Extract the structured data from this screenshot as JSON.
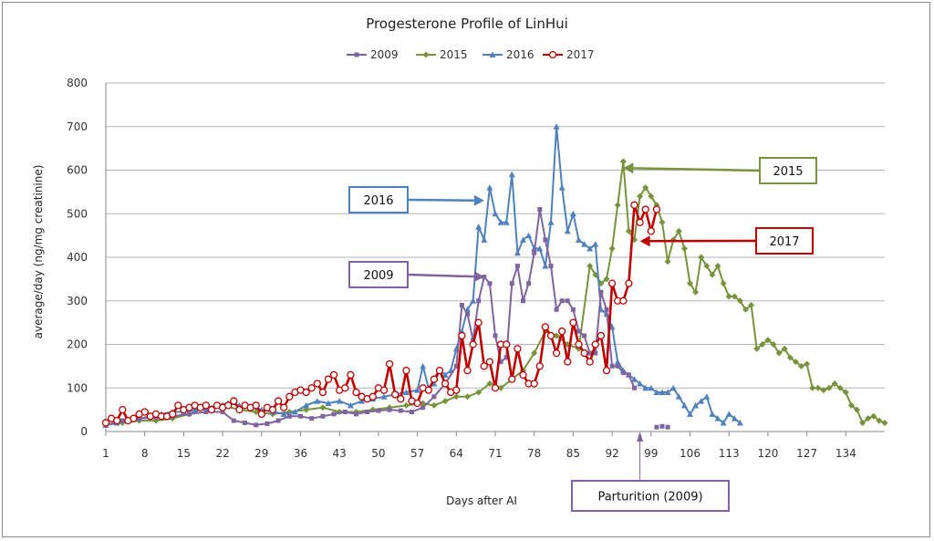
{
  "chart_data": {
    "type": "line",
    "title": "Progesterone Profile of LinHui",
    "xlabel": "Days after AI",
    "ylabel": "average/day (ng/mg creatinine)",
    "ylim": [
      0,
      800
    ],
    "xlim": [
      1,
      141
    ],
    "yticks": [
      "0",
      "100",
      "200",
      "300",
      "400",
      "500",
      "600",
      "700",
      "800"
    ],
    "xticks": [
      "1",
      "8",
      "15",
      "22",
      "29",
      "36",
      "43",
      "50",
      "57",
      "64",
      "71",
      "78",
      "85",
      "92",
      "99",
      "106",
      "113",
      "120",
      "127",
      "134"
    ],
    "grid": true,
    "legend_position": "top",
    "series": [
      {
        "name": "2009",
        "color": "#8064a2",
        "marker": "square",
        "x": [
          1,
          4,
          7,
          10,
          13,
          16,
          19,
          22,
          24,
          26,
          28,
          30,
          32,
          34,
          36,
          38,
          40,
          42,
          44,
          46,
          48,
          50,
          52,
          54,
          56,
          58,
          60,
          62,
          64,
          65,
          66,
          67,
          68,
          69,
          70,
          71,
          72,
          73,
          74,
          75,
          76,
          77,
          78,
          79,
          80,
          81,
          82,
          83,
          84,
          85,
          86,
          87,
          88,
          89,
          90,
          91,
          92,
          93,
          94,
          95,
          96,
          97
        ],
        "y": [
          15,
          25,
          30,
          32,
          35,
          40,
          45,
          45,
          25,
          20,
          15,
          18,
          25,
          35,
          35,
          30,
          35,
          40,
          45,
          40,
          45,
          48,
          50,
          48,
          45,
          55,
          80,
          110,
          150,
          290,
          270,
          210,
          300,
          355,
          340,
          220,
          160,
          170,
          340,
          380,
          300,
          340,
          410,
          510,
          440,
          380,
          280,
          300,
          300,
          280,
          230,
          220,
          180,
          180,
          320,
          280,
          150,
          150,
          135,
          130,
          100,
          null
        ],
        "extra_x": [
          100,
          101,
          102
        ],
        "extra_y": [
          10,
          12,
          10
        ]
      },
      {
        "name": "2015",
        "color": "#77933c",
        "marker": "diamond",
        "x": [
          1,
          4,
          7,
          10,
          13,
          16,
          19,
          22,
          25,
          28,
          31,
          34,
          37,
          40,
          43,
          46,
          49,
          52,
          55,
          58,
          60,
          62,
          64,
          66,
          68,
          70,
          72,
          74,
          76,
          78,
          80,
          82,
          84,
          86,
          88,
          89,
          90,
          91,
          92,
          93,
          94,
          95,
          96,
          97,
          98,
          99,
          100,
          101,
          102,
          103,
          104,
          105,
          106,
          107,
          108,
          109,
          110,
          111,
          112,
          113,
          114,
          115,
          116,
          117,
          118,
          119,
          120,
          121,
          122,
          123,
          124,
          125,
          126,
          127,
          128,
          129,
          130,
          131,
          132,
          133,
          134,
          135,
          136,
          137,
          138,
          139,
          140,
          141
        ],
        "y": [
          15,
          20,
          25,
          25,
          30,
          40,
          55,
          60,
          50,
          45,
          40,
          45,
          50,
          55,
          45,
          45,
          50,
          55,
          60,
          65,
          60,
          70,
          80,
          80,
          90,
          110,
          100,
          120,
          140,
          180,
          230,
          220,
          200,
          190,
          380,
          360,
          340,
          350,
          420,
          520,
          620,
          460,
          440,
          540,
          560,
          540,
          520,
          480,
          390,
          440,
          460,
          420,
          340,
          320,
          400,
          380,
          360,
          380,
          340,
          310,
          310,
          300,
          280,
          290,
          190,
          200,
          210,
          200,
          180,
          190,
          170,
          160,
          150,
          155,
          100,
          100,
          95,
          100,
          110,
          100,
          90,
          60,
          50,
          20,
          30,
          35,
          25,
          20
        ]
      },
      {
        "name": "2016",
        "color": "#4f81bd",
        "marker": "triangle",
        "x": [
          1,
          3,
          5,
          7,
          9,
          11,
          13,
          15,
          17,
          19,
          21,
          23,
          25,
          27,
          29,
          31,
          33,
          35,
          37,
          39,
          41,
          43,
          45,
          47,
          49,
          51,
          53,
          55,
          57,
          58,
          59,
          60,
          61,
          62,
          63,
          64,
          65,
          66,
          67,
          68,
          69,
          70,
          71,
          72,
          73,
          74,
          75,
          76,
          77,
          78,
          79,
          80,
          81,
          82,
          83,
          84,
          85,
          86,
          87,
          88,
          89,
          90,
          91,
          92,
          93,
          94,
          95,
          96,
          97,
          98,
          99,
          100,
          101,
          102,
          103,
          104,
          105,
          106,
          107,
          108,
          109,
          110,
          111,
          112,
          113,
          114,
          115
        ],
        "y": [
          15,
          20,
          25,
          30,
          35,
          40,
          45,
          45,
          50,
          55,
          60,
          65,
          60,
          55,
          50,
          45,
          40,
          45,
          60,
          70,
          65,
          70,
          60,
          70,
          75,
          80,
          85,
          90,
          95,
          150,
          100,
          110,
          140,
          130,
          140,
          190,
          230,
          280,
          300,
          470,
          440,
          560,
          500,
          480,
          480,
          590,
          410,
          440,
          450,
          420,
          420,
          380,
          480,
          700,
          560,
          460,
          500,
          440,
          430,
          420,
          430,
          280,
          270,
          240,
          160,
          140,
          130,
          120,
          110,
          100,
          100,
          90,
          90,
          90,
          100,
          80,
          60,
          40,
          60,
          70,
          80,
          40,
          30,
          20,
          40,
          30,
          20
        ]
      },
      {
        "name": "2017",
        "color": "#c00000",
        "marker": "circle",
        "x": [
          1,
          2,
          3,
          4,
          5,
          6,
          7,
          8,
          9,
          10,
          11,
          12,
          13,
          14,
          15,
          16,
          17,
          18,
          19,
          20,
          21,
          22,
          23,
          24,
          25,
          26,
          27,
          28,
          29,
          30,
          31,
          32,
          33,
          34,
          35,
          36,
          37,
          38,
          39,
          40,
          41,
          42,
          43,
          44,
          45,
          46,
          47,
          48,
          49,
          50,
          51,
          52,
          53,
          54,
          55,
          56,
          57,
          58,
          59,
          60,
          61,
          62,
          63,
          64,
          65,
          66,
          67,
          68,
          69,
          70,
          71,
          72,
          73,
          74,
          75,
          76,
          77,
          78,
          79,
          80,
          81,
          82,
          83,
          84,
          85,
          86,
          87,
          88,
          89,
          90,
          91,
          92,
          93,
          94,
          95,
          96,
          97,
          98,
          99,
          100
        ],
        "y": [
          20,
          30,
          25,
          50,
          25,
          30,
          40,
          45,
          35,
          40,
          35,
          35,
          40,
          60,
          50,
          55,
          60,
          55,
          60,
          50,
          60,
          55,
          60,
          70,
          50,
          60,
          55,
          60,
          40,
          55,
          50,
          70,
          55,
          80,
          90,
          95,
          90,
          100,
          110,
          90,
          120,
          130,
          95,
          100,
          130,
          90,
          80,
          75,
          80,
          100,
          95,
          155,
          85,
          75,
          140,
          70,
          65,
          100,
          95,
          120,
          140,
          110,
          90,
          95,
          220,
          140,
          200,
          250,
          150,
          160,
          100,
          200,
          200,
          120,
          190,
          130,
          110,
          110,
          150,
          240,
          220,
          180,
          230,
          160,
          250,
          200,
          180,
          160,
          200,
          220,
          140,
          340,
          300,
          300,
          340,
          520,
          480,
          510,
          460,
          510
        ]
      }
    ],
    "annotations": [
      {
        "label": "2016",
        "color": "#4f81bd",
        "x": 69,
        "y": 530
      },
      {
        "label": "2009",
        "color": "#8064a2",
        "x": 69,
        "y": 355
      },
      {
        "label": "2015",
        "color": "#77933c",
        "x": 94,
        "y": 605
      },
      {
        "label": "2017",
        "color": "#c00000",
        "x": 97,
        "y": 437
      },
      {
        "label": "Parturition (2009)",
        "color": "#8064a2",
        "x": 97,
        "y": 0
      }
    ]
  }
}
